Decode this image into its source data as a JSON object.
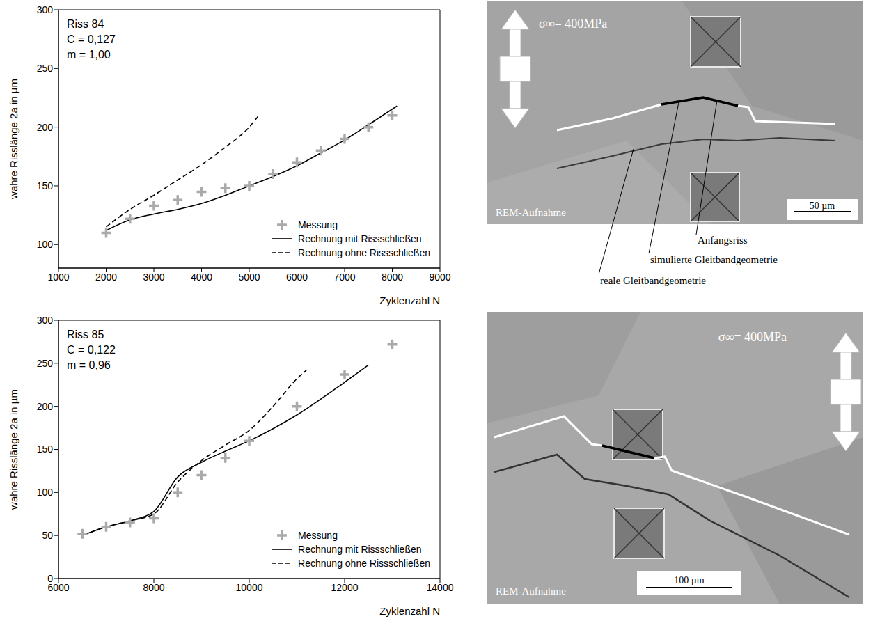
{
  "chart_data": [
    {
      "type": "line",
      "annotations": [
        "Riss 84",
        "C = 0,127",
        "m = 1,00"
      ],
      "x_label": "Zyklenzahl N",
      "y_label": "wahre Risslänge 2a in µm",
      "xlim": [
        1000,
        9000
      ],
      "xticks": [
        1000,
        2000,
        3000,
        4000,
        5000,
        6000,
        7000,
        8000,
        9000
      ],
      "ylim": [
        80,
        300
      ],
      "yticks": [
        100,
        150,
        200,
        250,
        300
      ],
      "grid": false,
      "legend": "lower right",
      "series": [
        {
          "name": "Messung",
          "type": "scatter",
          "marker": "plus",
          "color": "#aaaaaa",
          "x": [
            2000,
            2500,
            3000,
            3500,
            4000,
            4500,
            5000,
            5500,
            6000,
            6500,
            7000,
            7500,
            8000
          ],
          "values": [
            110,
            122,
            133,
            138,
            145,
            148,
            150,
            160,
            170,
            180,
            190,
            200,
            210
          ]
        },
        {
          "name": "Rechnung mit Rissschließen",
          "type": "line",
          "line_style": "solid",
          "color": "#000000",
          "x": [
            2000,
            2500,
            3000,
            3500,
            4000,
            4500,
            5000,
            5500,
            6000,
            6500,
            7000,
            7500,
            8100
          ],
          "values": [
            112,
            121,
            126,
            130,
            135,
            142,
            150,
            158,
            167,
            178,
            189,
            202,
            218
          ]
        },
        {
          "name": "Rechnung ohne Rissschließen",
          "type": "line",
          "line_style": "dashed",
          "color": "#000000",
          "x": [
            2000,
            2500,
            3000,
            3500,
            4000,
            4500,
            5000,
            5200
          ],
          "values": [
            115,
            130,
            142,
            155,
            168,
            183,
            200,
            210
          ]
        }
      ]
    },
    {
      "type": "line",
      "annotations": [
        "Riss 85",
        "C = 0,122",
        "m = 0,96"
      ],
      "x_label": "Zyklenzahl N",
      "y_label": "wahre Risslänge 2a in µm",
      "xlim": [
        6000,
        14000
      ],
      "xticks": [
        6000,
        8000,
        10000,
        12000,
        14000
      ],
      "ylim": [
        0,
        300
      ],
      "yticks": [
        0,
        50,
        100,
        150,
        200,
        250,
        300
      ],
      "grid": false,
      "legend": "lower right",
      "series": [
        {
          "name": "Messung",
          "type": "scatter",
          "marker": "plus",
          "color": "#aaaaaa",
          "x": [
            6500,
            7000,
            7500,
            8000,
            8500,
            9000,
            9500,
            10000,
            11000,
            12000,
            13000
          ],
          "values": [
            52,
            60,
            65,
            70,
            100,
            120,
            140,
            160,
            200,
            237,
            272
          ]
        },
        {
          "name": "Rechnung mit Rissschließen",
          "type": "line",
          "line_style": "solid",
          "color": "#000000",
          "x": [
            6500,
            7000,
            7500,
            8000,
            8500,
            9000,
            9500,
            10000,
            11000,
            12000,
            12500
          ],
          "values": [
            50,
            60,
            67,
            78,
            118,
            135,
            148,
            160,
            190,
            228,
            248
          ]
        },
        {
          "name": "Rechnung ohne Rissschließen",
          "type": "line",
          "line_style": "dashed",
          "color": "#000000",
          "x": [
            6500,
            7000,
            7500,
            8000,
            8500,
            9000,
            9500,
            10000,
            10500,
            11000,
            11200
          ],
          "values": [
            50,
            60,
            67,
            75,
            112,
            137,
            155,
            172,
            200,
            232,
            242
          ]
        }
      ]
    }
  ],
  "images": [
    {
      "load": "σ∞= 400MPa",
      "caption": "REM-Aufnahme",
      "scale_bar": "50 µm",
      "labels": [
        "Anfangsriss",
        "simulierte Gleitbandgeometrie",
        "reale Gleitbandgeometrie"
      ]
    },
    {
      "load": "σ∞= 400MPa",
      "caption": "REM-Aufnahme",
      "scale_bar": "100 µm"
    }
  ]
}
